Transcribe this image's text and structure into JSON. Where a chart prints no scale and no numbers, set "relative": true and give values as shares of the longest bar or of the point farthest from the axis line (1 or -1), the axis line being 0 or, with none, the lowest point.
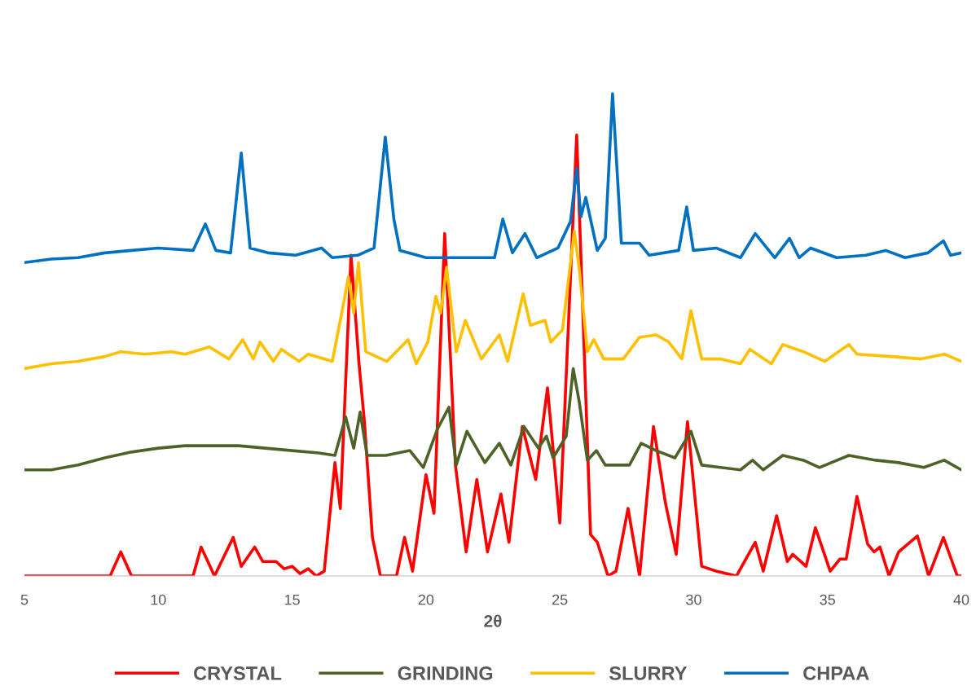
{
  "chart_data": {
    "type": "line",
    "relative": true,
    "xlabel": "2θ",
    "xlim": [
      5,
      40
    ],
    "xticks": [
      5,
      10,
      15,
      20,
      25,
      30,
      35,
      40
    ],
    "grid": false,
    "legend": "bottom",
    "marker": "none",
    "line_style": "solid",
    "series": [
      {
        "name": "CRYSTAL",
        "color": "#ff0000",
        "x": [
          5,
          8.2,
          8.6,
          9.0,
          11.3,
          11.6,
          12.1,
          12.8,
          13.1,
          13.6,
          13.9,
          14.4,
          14.7,
          15.0,
          15.3,
          15.6,
          15.9,
          16.2,
          16.6,
          16.8,
          17.2,
          17.5,
          17.7,
          18.0,
          18.3,
          18.9,
          19.2,
          19.5,
          20.0,
          20.3,
          20.7,
          21.1,
          21.5,
          21.9,
          22.3,
          22.8,
          23.1,
          23.6,
          24.1,
          24.54,
          25.0,
          25.63,
          26.15,
          26.4,
          26.8,
          27.1,
          27.55,
          27.98,
          28.5,
          28.95,
          29.35,
          29.77,
          30.3,
          30.84,
          31.6,
          32.3,
          32.6,
          33.1,
          33.5,
          33.7,
          34.2,
          34.55,
          35.1,
          35.46,
          35.7,
          36.1,
          36.5,
          36.74,
          36.96,
          37.3,
          37.66,
          38.08,
          38.36,
          38.78,
          39.33,
          39.85,
          40
        ],
        "values": [
          0,
          0,
          0.05,
          0,
          0,
          0.06,
          0,
          0.08,
          0.02,
          0.06,
          0.03,
          0.03,
          0.015,
          0.02,
          0.005,
          0.015,
          0,
          0.01,
          0.235,
          0.14,
          0.665,
          0.44,
          0.32,
          0.08,
          0,
          0,
          0.08,
          0.01,
          0.21,
          0.13,
          0.71,
          0.23,
          0.05,
          0.2,
          0.05,
          0.17,
          0.07,
          0.31,
          0.2,
          0.39,
          0.11,
          0.914,
          0.086,
          0.07,
          0,
          0.01,
          0.14,
          0,
          0.31,
          0.15,
          0.045,
          0.32,
          0.02,
          0.01,
          0,
          0.07,
          0.01,
          0.125,
          0.03,
          0.045,
          0.02,
          0.1,
          0.01,
          0.035,
          0.035,
          0.165,
          0.066,
          0.05,
          0.06,
          0,
          0.05,
          0.07,
          0.083,
          0,
          0.08,
          0,
          0
        ]
      },
      {
        "name": "GRINDING",
        "color": "#4e6228",
        "x": [
          5,
          6,
          7,
          8,
          9,
          10,
          11,
          12,
          13,
          14,
          15,
          16,
          16.6,
          17.0,
          17.3,
          17.54,
          17.8,
          18.5,
          19.4,
          19.9,
          20.43,
          20.86,
          21.13,
          21.53,
          22.2,
          22.74,
          23.17,
          23.66,
          24.2,
          24.5,
          24.75,
          25.24,
          25.5,
          25.73,
          26.03,
          26.37,
          26.7,
          27.6,
          28.04,
          28.6,
          29.3,
          29.9,
          30.3,
          31.0,
          31.75,
          32.2,
          32.6,
          33.33,
          34.1,
          34.7,
          35.8,
          36.8,
          37.66,
          38.6,
          39.36,
          40
        ],
        "values": [
          0.22,
          0.22,
          0.23,
          0.245,
          0.257,
          0.265,
          0.27,
          0.27,
          0.27,
          0.265,
          0.26,
          0.255,
          0.25,
          0.33,
          0.265,
          0.34,
          0.25,
          0.25,
          0.26,
          0.225,
          0.305,
          0.35,
          0.23,
          0.3,
          0.235,
          0.275,
          0.23,
          0.31,
          0.265,
          0.29,
          0.245,
          0.29,
          0.43,
          0.36,
          0.24,
          0.26,
          0.23,
          0.23,
          0.275,
          0.26,
          0.245,
          0.3,
          0.23,
          0.225,
          0.22,
          0.24,
          0.22,
          0.25,
          0.24,
          0.225,
          0.25,
          0.24,
          0.235,
          0.225,
          0.24,
          0.22
        ]
      },
      {
        "name": "SLURRY",
        "color": "#ffc000",
        "x": [
          5,
          6,
          7,
          8,
          8.6,
          9.5,
          10.5,
          11,
          11.9,
          12.64,
          13.15,
          13.55,
          13.8,
          14.3,
          14.6,
          15.26,
          15.6,
          16.5,
          16.87,
          17.1,
          17.3,
          17.48,
          17.75,
          18.54,
          19.33,
          19.64,
          20.07,
          20.37,
          20.55,
          20.77,
          21.13,
          21.47,
          22.07,
          22.74,
          23.05,
          23.63,
          23.9,
          24.45,
          24.66,
          25.1,
          25.54,
          25.73,
          26.03,
          26.27,
          26.64,
          27.37,
          27.98,
          28.6,
          29.07,
          29.56,
          29.9,
          30.3,
          31.0,
          31.75,
          32.1,
          32.9,
          33.33,
          34.1,
          34.9,
          35.8,
          36.1,
          37.4,
          38.5,
          39.36,
          40
        ],
        "values": [
          0.43,
          0.44,
          0.445,
          0.455,
          0.465,
          0.46,
          0.465,
          0.46,
          0.475,
          0.45,
          0.49,
          0.45,
          0.485,
          0.445,
          0.47,
          0.445,
          0.46,
          0.445,
          0.55,
          0.62,
          0.545,
          0.65,
          0.465,
          0.445,
          0.49,
          0.44,
          0.485,
          0.58,
          0.545,
          0.64,
          0.465,
          0.53,
          0.45,
          0.5,
          0.445,
          0.585,
          0.52,
          0.53,
          0.485,
          0.51,
          0.715,
          0.635,
          0.465,
          0.49,
          0.45,
          0.45,
          0.495,
          0.5,
          0.485,
          0.45,
          0.55,
          0.45,
          0.45,
          0.44,
          0.47,
          0.44,
          0.48,
          0.465,
          0.445,
          0.48,
          0.46,
          0.455,
          0.45,
          0.46,
          0.445
        ]
      },
      {
        "name": "CHPAA",
        "color": "#0070c0",
        "x": [
          5,
          6,
          7,
          8,
          9,
          10,
          11.3,
          11.76,
          12.15,
          12.7,
          13.1,
          13.43,
          14.1,
          15.13,
          16.1,
          16.5,
          17.45,
          18.06,
          18.48,
          18.8,
          19.03,
          20.0,
          22.56,
          22.87,
          23.23,
          23.7,
          24.14,
          24.93,
          25.4,
          25.63,
          25.79,
          25.97,
          26.4,
          26.7,
          26.97,
          27.3,
          27.98,
          28.34,
          29.44,
          29.74,
          29.99,
          30.84,
          31.75,
          32.3,
          33.03,
          33.58,
          33.94,
          34.37,
          35.34,
          36.44,
          37.17,
          37.9,
          38.75,
          39.33,
          39.6,
          40
        ],
        "values": [
          0.65,
          0.657,
          0.66,
          0.67,
          0.675,
          0.68,
          0.675,
          0.73,
          0.675,
          0.67,
          0.877,
          0.68,
          0.67,
          0.665,
          0.68,
          0.66,
          0.665,
          0.68,
          0.91,
          0.74,
          0.675,
          0.66,
          0.66,
          0.74,
          0.67,
          0.71,
          0.66,
          0.68,
          0.735,
          0.845,
          0.745,
          0.785,
          0.675,
          0.7,
          1,
          0.69,
          0.69,
          0.665,
          0.675,
          0.765,
          0.675,
          0.68,
          0.66,
          0.71,
          0.66,
          0.7,
          0.66,
          0.68,
          0.66,
          0.665,
          0.675,
          0.66,
          0.67,
          0.695,
          0.665,
          0.67
        ]
      }
    ]
  }
}
